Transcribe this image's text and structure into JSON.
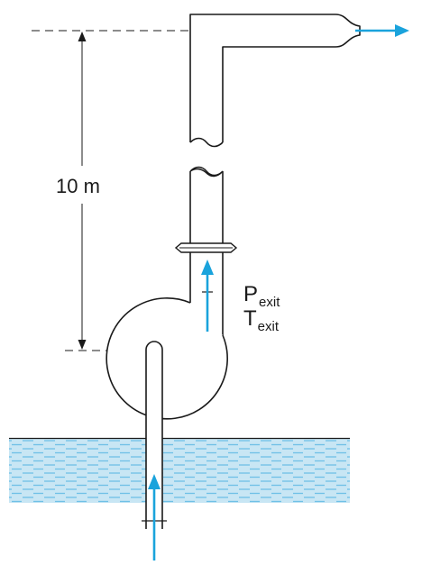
{
  "diagram": {
    "height_label": "10 m",
    "pressure_symbol": "P",
    "temperature_symbol": "T",
    "exit_subscript": "exit"
  },
  "colors": {
    "line": "#1a1a1a",
    "arrow": "#1aa3dc",
    "water_fill": "#c8e6f4",
    "water_dash": "#6fc0e6"
  },
  "icons": {
    "flow_arrow": "arrow-icon",
    "pump": "pump-icon",
    "flange": "flange-icon"
  }
}
